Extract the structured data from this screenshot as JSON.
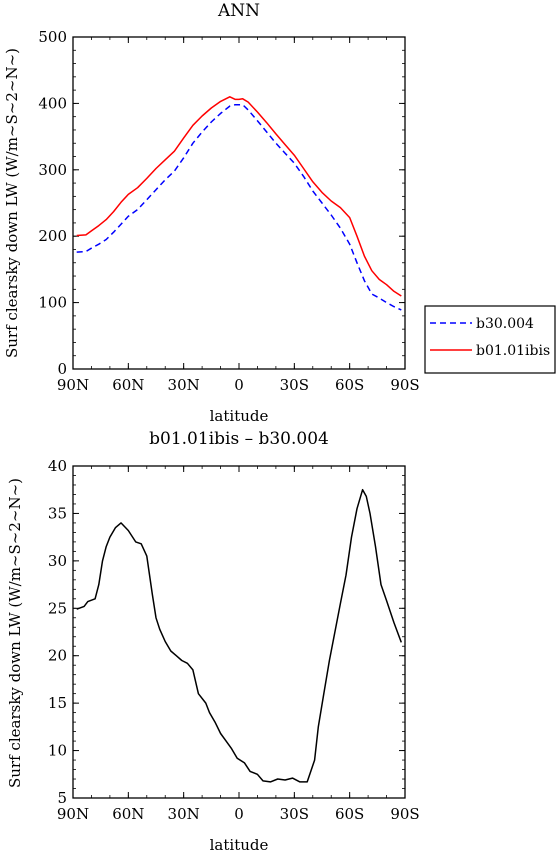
{
  "chart_data": [
    {
      "type": "line",
      "title": "ANN",
      "xlabel": "latitude",
      "ylabel": "Surf clearsky down LW (W/m~S~2~N~)",
      "x_tick_labels": [
        "90N",
        "60N",
        "30N",
        "0",
        "30S",
        "60S",
        "90S"
      ],
      "x_tick_values": [
        90,
        60,
        30,
        0,
        -30,
        -60,
        -90
      ],
      "xlim": [
        90,
        -90
      ],
      "ylim": [
        0,
        500
      ],
      "y_ticks": [
        0,
        100,
        200,
        300,
        400,
        500
      ],
      "grid": false,
      "legend_position": "right-bottom",
      "x": [
        88,
        83,
        80,
        76,
        72,
        68,
        64,
        60,
        55,
        50,
        45,
        40,
        35,
        30,
        25,
        20,
        15,
        10,
        5,
        2,
        0,
        -2,
        -5,
        -10,
        -15,
        -20,
        -25,
        -30,
        -35,
        -40,
        -45,
        -50,
        -55,
        -60,
        -64,
        -68,
        -72,
        -76,
        -80,
        -84,
        -88
      ],
      "series": [
        {
          "name": "b30.004",
          "color": "#0000ff",
          "style": "dashed",
          "values": [
            176,
            177,
            182,
            188,
            195,
            206,
            218,
            230,
            240,
            255,
            270,
            285,
            298,
            318,
            340,
            357,
            372,
            385,
            396,
            398,
            398,
            398,
            390,
            374,
            357,
            340,
            325,
            310,
            290,
            268,
            250,
            232,
            212,
            188,
            160,
            133,
            113,
            107,
            100,
            94,
            89
          ]
        },
        {
          "name": "b01.01ibis",
          "color": "#ff0000",
          "style": "solid",
          "values": [
            201,
            202,
            208,
            216,
            225,
            237,
            251,
            263,
            273,
            287,
            302,
            315,
            328,
            348,
            367,
            381,
            393,
            403,
            410,
            406,
            406,
            407,
            402,
            387,
            371,
            354,
            338,
            322,
            302,
            282,
            266,
            253,
            243,
            228,
            200,
            170,
            148,
            135,
            127,
            117,
            110
          ]
        }
      ]
    },
    {
      "type": "line",
      "title": "b01.01ibis – b30.004",
      "xlabel": "latitude",
      "ylabel": "Surf clearsky down LW (W/m~S~2~N~)",
      "x_tick_labels": [
        "90N",
        "60N",
        "30N",
        "0",
        "30S",
        "60S",
        "90S"
      ],
      "x_tick_values": [
        90,
        60,
        30,
        0,
        -30,
        -60,
        -90
      ],
      "xlim": [
        90,
        -90
      ],
      "ylim": [
        5,
        40
      ],
      "y_ticks": [
        5,
        10,
        15,
        20,
        25,
        30,
        35,
        40
      ],
      "grid": false,
      "x": [
        88,
        84,
        82,
        78,
        76,
        74,
        72,
        70,
        67,
        64,
        60,
        56,
        53,
        50,
        47,
        45,
        43,
        40,
        37,
        34,
        31,
        28,
        25,
        22,
        18,
        16,
        13,
        10,
        7,
        4,
        1,
        -3,
        -6,
        -10,
        -13,
        -17,
        -21,
        -25,
        -29,
        -33,
        -37,
        -41,
        -43,
        -46,
        -49,
        -52,
        -55,
        -58,
        -61,
        -64,
        -67,
        -69,
        -71,
        -74,
        -77,
        -80,
        -84,
        -88
      ],
      "series": [
        {
          "color": "#000000",
          "style": "solid",
          "values": [
            24.9,
            25.2,
            25.7,
            26.0,
            27.5,
            30.0,
            31.5,
            32.5,
            33.5,
            34.0,
            33.2,
            32.0,
            31.8,
            30.5,
            26.5,
            24.0,
            22.8,
            21.5,
            20.5,
            20.0,
            19.5,
            19.2,
            18.5,
            16.0,
            15.0,
            14.0,
            13.0,
            11.8,
            11.0,
            10.2,
            9.2,
            8.7,
            7.8,
            7.5,
            6.8,
            6.7,
            7.0,
            6.9,
            7.1,
            6.7,
            6.7,
            9.0,
            12.5,
            16.0,
            19.5,
            22.5,
            25.5,
            28.5,
            32.5,
            35.5,
            37.5,
            36.8,
            35.0,
            31.5,
            27.5,
            25.8,
            23.5,
            21.4
          ]
        }
      ]
    }
  ],
  "legend": {
    "items": [
      {
        "label": "b30.004",
        "color": "#0000ff",
        "style": "dashed"
      },
      {
        "label": "b01.01ibis",
        "color": "#ff0000",
        "style": "solid"
      }
    ]
  }
}
